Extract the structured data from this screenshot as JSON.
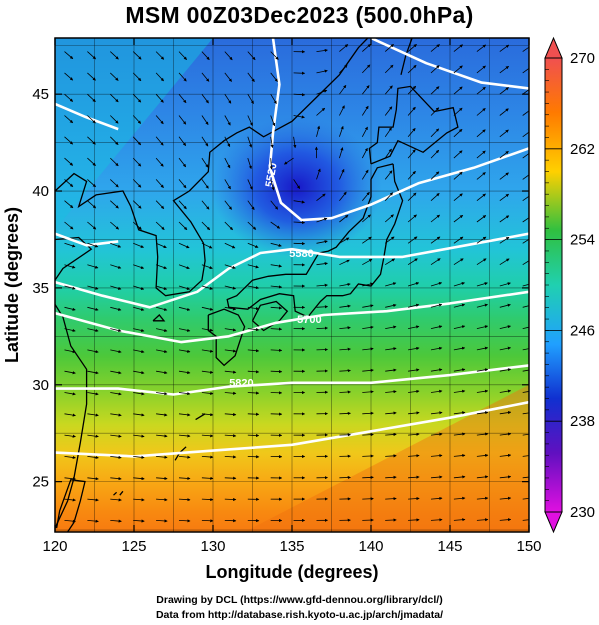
{
  "title": "MSM 00Z03Dec2023 (500.0hPa)",
  "map": {
    "xlabel": "Longitude (degrees)",
    "ylabel": "Latitude  (degrees)",
    "lon_range": [
      120,
      150
    ],
    "lat_range": [
      22.4,
      47.9
    ],
    "x_ticks": [
      "120",
      "125",
      "130",
      "135",
      "140",
      "145",
      "150"
    ],
    "y_ticks": [
      "25",
      "30",
      "35",
      "40",
      "45"
    ],
    "grid": true,
    "field": "temperature",
    "contour_labels": [
      "5520",
      "5580",
      "5700",
      "5820"
    ],
    "vector_field": "streamlines"
  },
  "colorbar": {
    "ticks": [
      "270",
      "262",
      "254",
      "246",
      "238",
      "230"
    ],
    "colors": [
      "#f03060",
      "#ff7a00",
      "#ffc000",
      "#c8e000",
      "#30c040",
      "#20d0b0",
      "#20a8ff",
      "#2050e0",
      "#1010c0",
      "#7010c0",
      "#e010e0"
    ]
  },
  "credits": {
    "line1": "Drawing by DCL (https://www.gfd-dennou.org/library/dcl/)",
    "line2": "Data from http://database.rish.kyoto-u.ac.jp/arch/jmadata/"
  }
}
